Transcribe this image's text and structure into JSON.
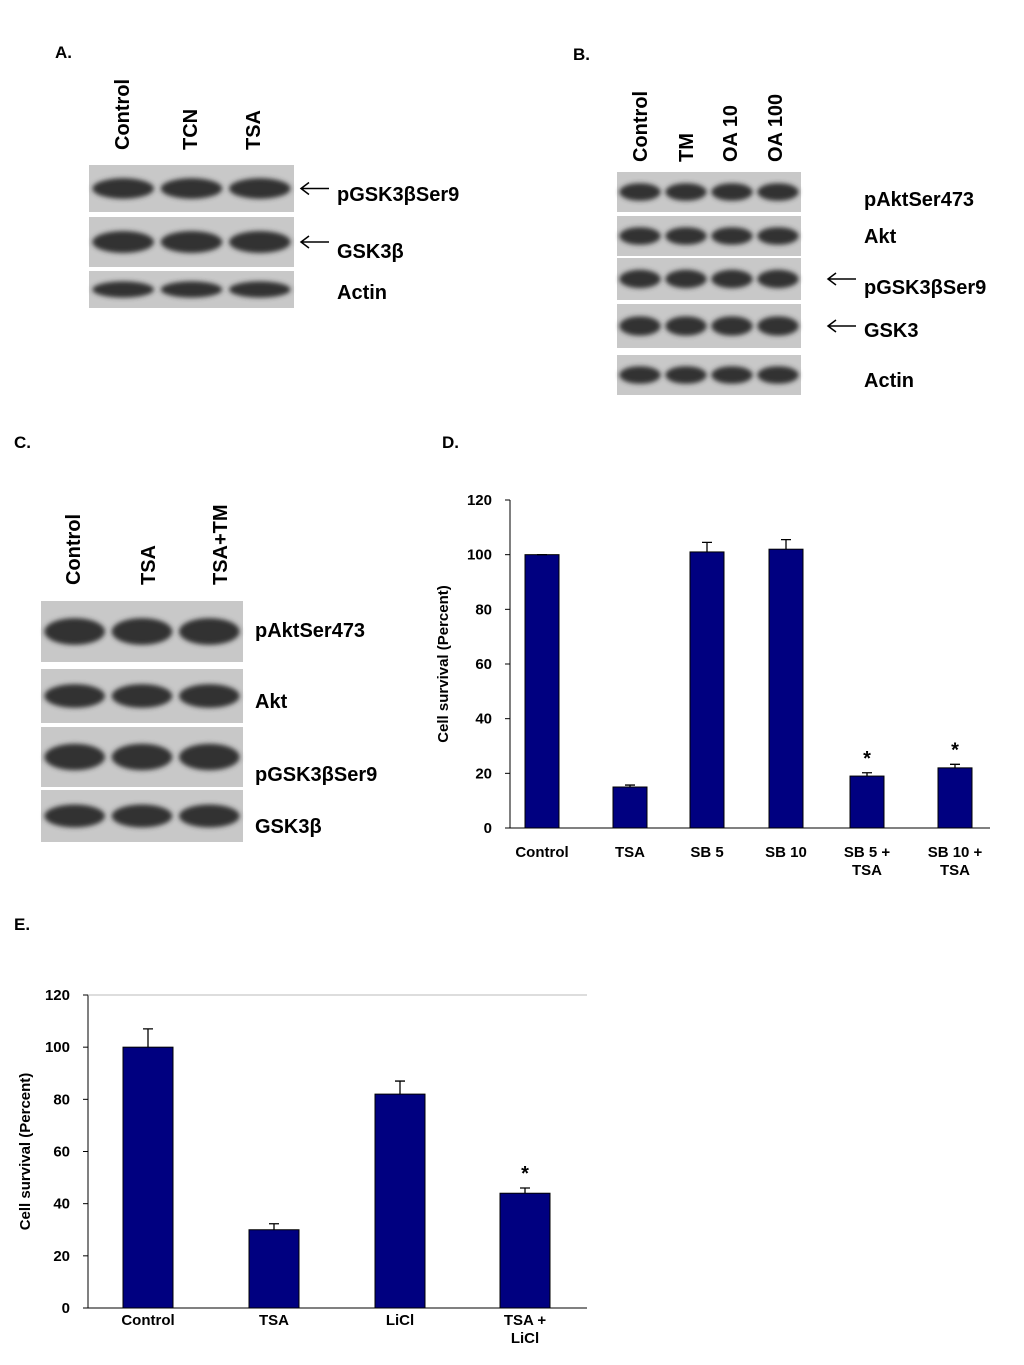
{
  "blots": [
    {
      "label": "A.",
      "lanes": [
        "Control",
        "TCN",
        "TSA"
      ],
      "bands": [
        {
          "name": "pGSK3βSer9",
          "arrow": true
        },
        {
          "name": "GSK3β",
          "arrow": true
        },
        {
          "name": "Actin",
          "arrow": false
        }
      ]
    },
    {
      "label": "B.",
      "lanes": [
        "Control",
        "TM",
        "OA 10",
        "OA 100"
      ],
      "bands": [
        {
          "name": "pAktSer473",
          "arrow": false
        },
        {
          "name": "Akt",
          "arrow": false
        },
        {
          "name": "pGSK3βSer9",
          "arrow": true
        },
        {
          "name": "GSK3",
          "arrow": true
        },
        {
          "name": "Actin",
          "arrow": false
        }
      ]
    },
    {
      "label": "C.",
      "lanes": [
        "Control",
        "TSA",
        "TSA+TM"
      ],
      "bands": [
        {
          "name": "pAktSer473",
          "arrow": false
        },
        {
          "name": "Akt",
          "arrow": false
        },
        {
          "name": "pGSK3βSer9",
          "arrow": false
        },
        {
          "name": "GSK3β",
          "arrow": false
        }
      ]
    }
  ],
  "chart_data": [
    {
      "label": "D.",
      "type": "bar",
      "ylabel": "Cell survival (Percent)",
      "categories": [
        "Control",
        "TSA",
        "SB 5",
        "SB 10",
        "SB 5 +\nTSA",
        "SB 10 +\nTSA"
      ],
      "values": [
        100,
        15,
        101,
        102,
        19,
        22
      ],
      "errors": [
        0,
        0.7,
        3.5,
        3.5,
        1.2,
        1.3
      ],
      "annotations": [
        null,
        null,
        null,
        null,
        "*",
        "*"
      ],
      "color": "#000080",
      "ylim": [
        0,
        120
      ],
      "yticks": [
        0,
        20,
        40,
        60,
        80,
        100,
        120
      ]
    },
    {
      "label": "E.",
      "type": "bar",
      "ylabel": "Cell survival (Percent)",
      "categories": [
        "Control",
        "TSA",
        "LiCl",
        "TSA +\nLiCl"
      ],
      "values": [
        100,
        30,
        82,
        44
      ],
      "errors": [
        7,
        2.3,
        5,
        2
      ],
      "annotations": [
        null,
        null,
        null,
        "*"
      ],
      "color": "#000080",
      "ylim": [
        0,
        120
      ],
      "yticks": [
        0,
        20,
        40,
        60,
        80,
        100,
        120
      ]
    }
  ]
}
